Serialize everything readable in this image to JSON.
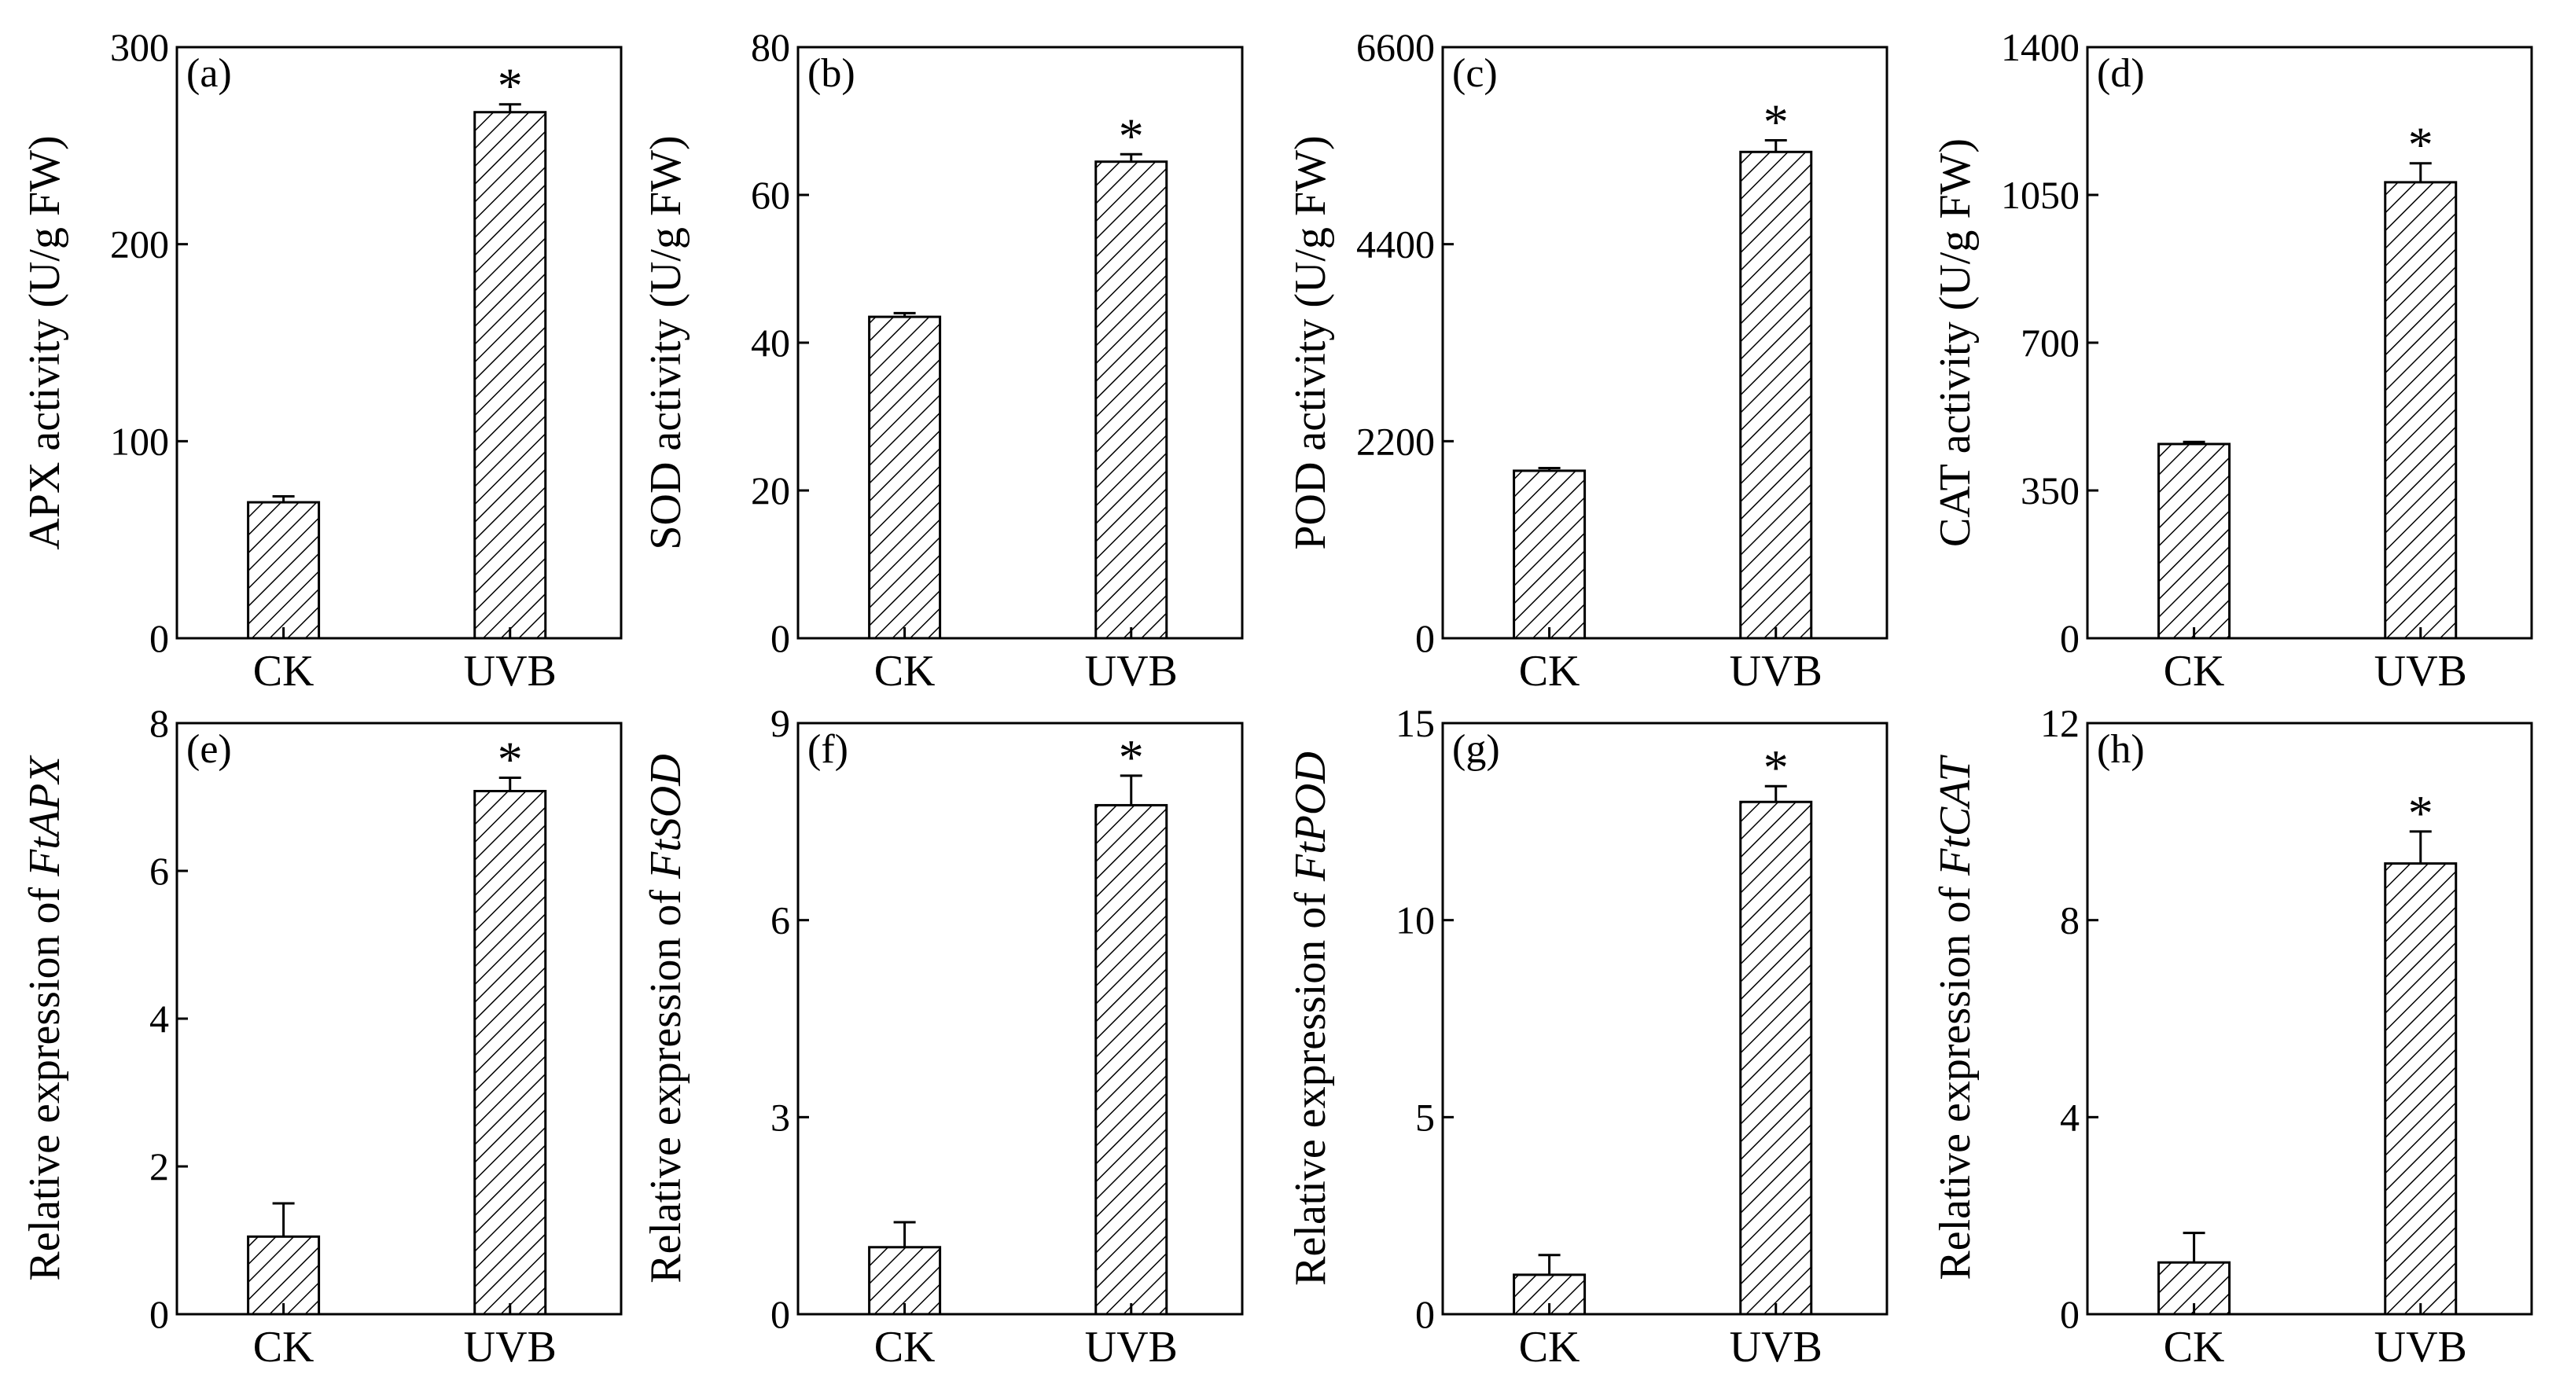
{
  "figure": {
    "colors": {
      "axis": "#000000",
      "bar_fill": "#ffffff",
      "hatch": "#000000"
    }
  },
  "chart_data": [
    {
      "type": "bar",
      "panel_label": "(a)",
      "ylabel": "APX activity (U/g FW)",
      "ylabel_gene": "",
      "categories": [
        "CK",
        "UVB"
      ],
      "values": [
        69,
        267
      ],
      "errors": [
        3,
        4
      ],
      "significance": [
        "",
        "*"
      ],
      "ylim": [
        0,
        300
      ],
      "yticks": [
        0,
        100,
        200,
        300
      ],
      "ytick_labels": [
        "0",
        "100",
        "200",
        "300"
      ]
    },
    {
      "type": "bar",
      "panel_label": "(b)",
      "ylabel": "SOD activity (U/g FW)",
      "ylabel_gene": "",
      "categories": [
        "CK",
        "UVB"
      ],
      "values": [
        43.5,
        64.5
      ],
      "errors": [
        0.5,
        1
      ],
      "significance": [
        "",
        "*"
      ],
      "ylim": [
        0,
        80
      ],
      "yticks": [
        0,
        20,
        40,
        60,
        80
      ],
      "ytick_labels": [
        "0",
        "20",
        "40",
        "60",
        "80"
      ]
    },
    {
      "type": "bar",
      "panel_label": "(c)",
      "ylabel": "POD activity (U/g FW)",
      "ylabel_gene": "",
      "categories": [
        "CK",
        "UVB"
      ],
      "values": [
        1870,
        5430
      ],
      "errors": [
        30,
        130
      ],
      "significance": [
        "",
        "*"
      ],
      "ylim": [
        0,
        6600
      ],
      "yticks": [
        0,
        2200,
        4400,
        6600
      ],
      "ytick_labels": [
        "0",
        "2200",
        "4400",
        "6600"
      ]
    },
    {
      "type": "bar",
      "panel_label": "(d)",
      "ylabel": "CAT activity (U/g FW)",
      "ylabel_gene": "",
      "categories": [
        "CK",
        "UVB"
      ],
      "values": [
        460,
        1080
      ],
      "errors": [
        5,
        45
      ],
      "significance": [
        "",
        "*"
      ],
      "ylim": [
        0,
        1400
      ],
      "yticks": [
        0,
        350,
        700,
        1050,
        1400
      ],
      "ytick_labels": [
        "0",
        "350",
        "700",
        "1050",
        "1400"
      ]
    },
    {
      "type": "bar",
      "panel_label": "(e)",
      "ylabel": "Relative expression of ",
      "ylabel_gene": "FtAPX",
      "categories": [
        "CK",
        "UVB"
      ],
      "values": [
        1.05,
        7.08
      ],
      "errors": [
        0.45,
        0.18
      ],
      "significance": [
        "",
        "*"
      ],
      "ylim": [
        0,
        8
      ],
      "yticks": [
        0,
        2,
        4,
        6,
        8
      ],
      "ytick_labels": [
        "0",
        "2",
        "4",
        "6",
        "8"
      ]
    },
    {
      "type": "bar",
      "panel_label": "(f)",
      "ylabel": "Relative expression of ",
      "ylabel_gene": "FtSOD",
      "categories": [
        "CK",
        "UVB"
      ],
      "values": [
        1.02,
        7.75
      ],
      "errors": [
        0.38,
        0.45
      ],
      "significance": [
        "",
        "*"
      ],
      "ylim": [
        0,
        9
      ],
      "yticks": [
        0,
        3,
        6,
        9
      ],
      "ytick_labels": [
        "0",
        "3",
        "6",
        "9"
      ]
    },
    {
      "type": "bar",
      "panel_label": "(g)",
      "ylabel": "Relative expression of ",
      "ylabel_gene": "FtPOD",
      "categories": [
        "CK",
        "UVB"
      ],
      "values": [
        1.0,
        13.0
      ],
      "errors": [
        0.5,
        0.4
      ],
      "significance": [
        "",
        "*"
      ],
      "ylim": [
        0,
        15
      ],
      "yticks": [
        0,
        5,
        10,
        15
      ],
      "ytick_labels": [
        "0",
        "5",
        "10",
        "15"
      ]
    },
    {
      "type": "bar",
      "panel_label": "(h)",
      "ylabel": "Relative expression of ",
      "ylabel_gene": "FtCAT",
      "categories": [
        "CK",
        "UVB"
      ],
      "values": [
        1.05,
        9.15
      ],
      "errors": [
        0.6,
        0.65
      ],
      "significance": [
        "",
        "*"
      ],
      "ylim": [
        0,
        12
      ],
      "yticks": [
        0,
        4,
        8,
        12
      ],
      "ytick_labels": [
        "0",
        "4",
        "8",
        "12"
      ]
    }
  ]
}
